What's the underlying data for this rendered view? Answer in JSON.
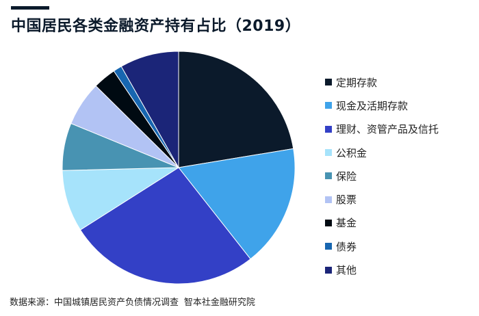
{
  "title": "中国居民各类金融资产持有占比（2019）",
  "source": "数据来源：中国城镇居民资产负债情况调查 智本社金融研究院",
  "chart_data": {
    "type": "pie",
    "title": "中国居民各类金融资产持有占比（2019）",
    "legend_position": "right",
    "slices": [
      {
        "label": "定期存款",
        "value": 22.4,
        "color": "#0b1a2b"
      },
      {
        "label": "现金及活期存款",
        "value": 17.0,
        "color": "#3fa3ea"
      },
      {
        "label": "理财、资管产品及信托",
        "value": 26.6,
        "color": "#3340c6"
      },
      {
        "label": "公积金",
        "value": 8.6,
        "color": "#a6e3fb"
      },
      {
        "label": "保险",
        "value": 6.6,
        "color": "#4893b2"
      },
      {
        "label": "股票",
        "value": 6.2,
        "color": "#b2c3f4"
      },
      {
        "label": "基金",
        "value": 3.2,
        "color": "#000a12"
      },
      {
        "label": "债券",
        "value": 1.2,
        "color": "#1766b0"
      },
      {
        "label": "其他",
        "value": 8.2,
        "color": "#1b2578"
      }
    ]
  }
}
